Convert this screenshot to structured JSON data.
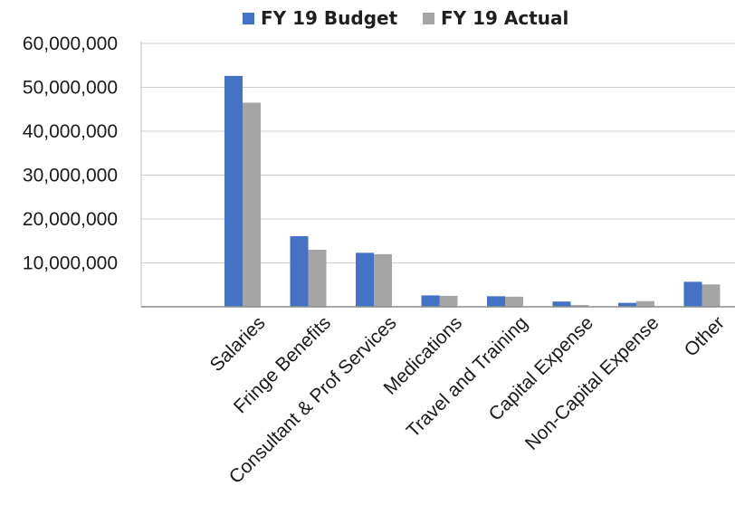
{
  "chart_data": {
    "type": "bar",
    "title": "",
    "xlabel": "",
    "ylabel": "",
    "categories": [
      "Salaries",
      "Fringe Benefits",
      "Consultant & Prof Services",
      "Medications",
      "Travel and Training",
      "Capital Expense",
      "Non-Capital Expense",
      "Other"
    ],
    "series": [
      {
        "name": "FY 19 Budget",
        "color": "#4472C4",
        "values": [
          52600000,
          16100000,
          12300000,
          2600000,
          2400000,
          1200000,
          900000,
          5700000
        ]
      },
      {
        "name": "FY 19 Actual",
        "color": "#A5A5A5",
        "values": [
          46500000,
          13000000,
          12000000,
          2500000,
          2300000,
          400000,
          1300000,
          5100000
        ]
      }
    ],
    "ylim": [
      0,
      60000000
    ],
    "yticks": [
      "60,000,000",
      "50,000,000",
      "40,000,000",
      "30,000,000",
      "20,000,000",
      "10,000,000"
    ],
    "ytick_values": [
      60000000,
      50000000,
      40000000,
      30000000,
      20000000,
      10000000
    ],
    "grid": true,
    "legend_position": "top"
  }
}
